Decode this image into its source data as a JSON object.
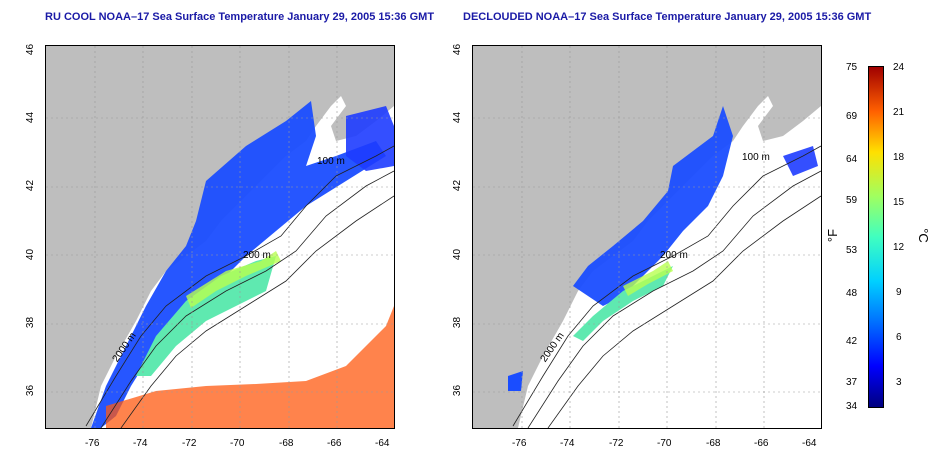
{
  "left_title": "RU COOL NOAA–17 Sea Surface Temperature January 29, 2005 15:36 GMT",
  "right_title": "DECLOUDED NOAA–17 Sea Surface Temperature January 29, 2005 15:36 GMT",
  "lon_ticks": [
    "-76",
    "-74",
    "-72",
    "-70",
    "-68",
    "-66",
    "-64"
  ],
  "lat_ticks": [
    "36",
    "38",
    "40",
    "42",
    "44",
    "46"
  ],
  "contour_labels": {
    "left": [
      "100 m",
      "200 m",
      "2000 m"
    ],
    "right": [
      "100 m",
      "200 m",
      "2000 m"
    ]
  },
  "colorbar": {
    "fahrenheit_ticks": [
      "75",
      "69",
      "64",
      "59",
      "53",
      "48",
      "42",
      "37",
      "34"
    ],
    "celsius_ticks": [
      "24",
      "21",
      "18",
      "15",
      "12",
      "9",
      "6",
      "3"
    ],
    "fahrenheit_unit": "°F",
    "celsius_unit": "°C"
  },
  "colors": {
    "land": "#bebebe",
    "title": "#1a1aa6",
    "cold": "#0030ff",
    "warm": "#ff3a00"
  }
}
